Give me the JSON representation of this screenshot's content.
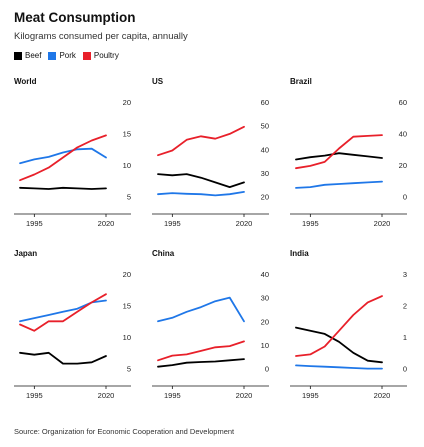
{
  "title": "Meat Consumption",
  "subtitle": "Kilograms consumed per capita, annually",
  "legend": [
    {
      "label": "Beef",
      "color": "#000000"
    },
    {
      "label": "Pork",
      "color": "#1f77e8"
    },
    {
      "label": "Poultry",
      "color": "#e8202a"
    }
  ],
  "source": "Source: Organization for Economic Cooperation and Development",
  "chart_data": [
    {
      "type": "line",
      "title": "World",
      "ylim": [
        5,
        20
      ],
      "yticks": [
        5,
        10,
        15,
        20
      ],
      "x": [
        1990,
        1995,
        2000,
        2005,
        2010,
        2015,
        2020
      ],
      "xlim": [
        1990,
        2020
      ],
      "xticks": [
        1995,
        2020
      ],
      "series": [
        {
          "name": "Beef",
          "color": "#000000",
          "values": [
            6.4,
            6.3,
            6.2,
            6.4,
            6.3,
            6.2,
            6.3
          ]
        },
        {
          "name": "Pork",
          "color": "#1f77e8",
          "values": [
            10.3,
            10.9,
            11.3,
            12.0,
            12.5,
            12.6,
            11.2
          ]
        },
        {
          "name": "Poultry",
          "color": "#e8202a",
          "values": [
            7.6,
            8.5,
            9.6,
            11.2,
            12.8,
            13.9,
            14.7
          ]
        }
      ]
    },
    {
      "type": "line",
      "title": "US",
      "ylim": [
        20,
        60
      ],
      "yticks": [
        20,
        30,
        40,
        50,
        60
      ],
      "x": [
        1990,
        1995,
        2000,
        2005,
        2010,
        2015,
        2020
      ],
      "xlim": [
        1990,
        2020
      ],
      "xticks": [
        1995,
        2020
      ],
      "series": [
        {
          "name": "Beef",
          "color": "#000000",
          "values": [
            29.5,
            29.0,
            29.5,
            28.0,
            26.0,
            24.0,
            26.0
          ]
        },
        {
          "name": "Pork",
          "color": "#1f77e8",
          "values": [
            21.0,
            21.5,
            21.2,
            21.0,
            20.5,
            21.0,
            22.0
          ]
        },
        {
          "name": "Poultry",
          "color": "#e8202a",
          "values": [
            37.5,
            39.5,
            44.0,
            45.5,
            44.5,
            46.5,
            49.5
          ]
        }
      ]
    },
    {
      "type": "line",
      "title": "Brazil",
      "ylim": [
        0,
        60
      ],
      "yticks": [
        0,
        20,
        40,
        60
      ],
      "x": [
        1990,
        1995,
        2000,
        2005,
        2010,
        2015,
        2020
      ],
      "xlim": [
        1990,
        2020
      ],
      "xticks": [
        1995,
        2020
      ],
      "series": [
        {
          "name": "Beef",
          "color": "#000000",
          "values": [
            23.5,
            25.0,
            26.0,
            27.5,
            26.5,
            25.5,
            24.5
          ]
        },
        {
          "name": "Pork",
          "color": "#1f77e8",
          "values": [
            5.5,
            6.0,
            7.5,
            8.0,
            8.5,
            9.0,
            9.5
          ]
        },
        {
          "name": "Poultry",
          "color": "#e8202a",
          "values": [
            18.0,
            19.5,
            22.0,
            30.5,
            38.0,
            38.5,
            39.0
          ]
        }
      ]
    },
    {
      "type": "line",
      "title": "Japan",
      "ylim": [
        5,
        20
      ],
      "yticks": [
        5,
        10,
        15,
        20
      ],
      "x": [
        1990,
        1995,
        2000,
        2005,
        2010,
        2015,
        2020
      ],
      "xlim": [
        1990,
        2020
      ],
      "xticks": [
        1995,
        2020
      ],
      "series": [
        {
          "name": "Beef",
          "color": "#000000",
          "values": [
            7.5,
            7.2,
            7.5,
            5.8,
            5.8,
            6.0,
            7.0
          ]
        },
        {
          "name": "Pork",
          "color": "#1f77e8",
          "values": [
            12.5,
            13.0,
            13.5,
            14.0,
            14.5,
            15.5,
            15.8
          ]
        },
        {
          "name": "Poultry",
          "color": "#e8202a",
          "values": [
            12.0,
            11.0,
            12.5,
            12.5,
            14.0,
            15.5,
            16.8
          ]
        }
      ]
    },
    {
      "type": "line",
      "title": "China",
      "ylim": [
        0,
        40
      ],
      "yticks": [
        0,
        10,
        20,
        30,
        40
      ],
      "x": [
        1990,
        1995,
        2000,
        2005,
        2010,
        2015,
        2020
      ],
      "xlim": [
        1990,
        2020
      ],
      "xticks": [
        1995,
        2020
      ],
      "series": [
        {
          "name": "Beef",
          "color": "#000000",
          "values": [
            0.8,
            1.5,
            2.5,
            2.8,
            3.0,
            3.5,
            4.0
          ]
        },
        {
          "name": "Pork",
          "color": "#1f77e8",
          "values": [
            20.0,
            21.5,
            24.0,
            26.0,
            28.5,
            30.0,
            20.0
          ]
        },
        {
          "name": "Poultry",
          "color": "#e8202a",
          "values": [
            3.5,
            5.5,
            6.0,
            7.5,
            9.0,
            9.5,
            11.5
          ]
        }
      ]
    },
    {
      "type": "line",
      "title": "India",
      "ylim": [
        0,
        3
      ],
      "yticks": [
        0,
        1,
        2,
        3
      ],
      "x": [
        1990,
        1995,
        2000,
        2005,
        2010,
        2015,
        2020
      ],
      "xlim": [
        1990,
        2020
      ],
      "xticks": [
        1995,
        2020
      ],
      "series": [
        {
          "name": "Beef",
          "color": "#000000",
          "values": [
            1.3,
            1.2,
            1.1,
            0.85,
            0.5,
            0.25,
            0.2
          ]
        },
        {
          "name": "Pork",
          "color": "#1f77e8",
          "values": [
            0.1,
            0.08,
            0.06,
            0.04,
            0.02,
            0.0,
            0.0
          ]
        },
        {
          "name": "Poultry",
          "color": "#e8202a",
          "values": [
            0.4,
            0.45,
            0.7,
            1.2,
            1.7,
            2.1,
            2.3
          ]
        }
      ]
    }
  ]
}
